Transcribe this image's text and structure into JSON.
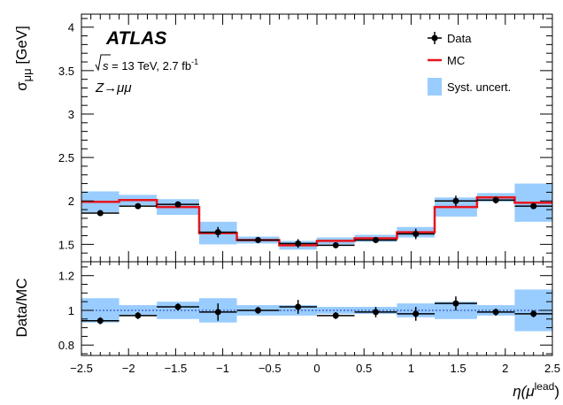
{
  "chart_data": {
    "type": "step",
    "x_edges": [
      -2.5,
      -2.1,
      -1.7,
      -1.25,
      -0.85,
      -0.4,
      0.0,
      0.4,
      0.85,
      1.25,
      1.7,
      2.1,
      2.5
    ],
    "x_centers": [
      -2.3,
      -1.9,
      -1.475,
      -1.05,
      -0.625,
      -0.2,
      0.2,
      0.625,
      1.05,
      1.475,
      1.9,
      2.3
    ],
    "xlim": [
      -2.5,
      2.5
    ],
    "xticks": [
      -2.5,
      -2,
      -1.5,
      -1,
      -0.5,
      0,
      0.5,
      1,
      1.5,
      2,
      2.5
    ],
    "xtick_labels": [
      "−2.5",
      "−2",
      "−1.5",
      "−1",
      "−0.5",
      "0",
      "0.5",
      "1",
      "1.5",
      "2",
      "2.5"
    ],
    "xlabel_main": "η(μ",
    "xlabel_sup": "lead",
    "xlabel_close": ")",
    "top_panel": {
      "ylabel_main": "σ",
      "ylabel_sub": "μμ",
      "ylabel_unit": " [GeV]",
      "ylim": [
        1.3,
        4.15
      ],
      "yticks": [
        1.5,
        2,
        2.5,
        3,
        3.5,
        4
      ],
      "ytick_labels": [
        "1.5",
        "2",
        "2.5",
        "3",
        "3.5",
        "4"
      ],
      "series": [
        {
          "name": "Data",
          "kind": "points",
          "color": "#000000",
          "values": [
            1.86,
            1.94,
            1.96,
            1.64,
            1.55,
            1.51,
            1.49,
            1.55,
            1.62,
            2.0,
            2.01,
            1.94
          ],
          "errors": [
            0.02,
            0.02,
            0.03,
            0.06,
            0.03,
            0.05,
            0.03,
            0.03,
            0.06,
            0.06,
            0.04,
            0.02
          ]
        },
        {
          "name": "MC",
          "kind": "step",
          "color": "#e8141c",
          "values": [
            1.99,
            2.01,
            1.93,
            1.63,
            1.55,
            1.49,
            1.54,
            1.57,
            1.64,
            1.93,
            2.04,
            1.98
          ]
        },
        {
          "name": "Syst. uncert.",
          "kind": "band",
          "color": "#99ccff",
          "values": [
            1.99,
            2.01,
            1.93,
            1.63,
            1.55,
            1.49,
            1.54,
            1.57,
            1.64,
            1.93,
            2.04,
            1.98
          ],
          "errors": [
            0.12,
            0.06,
            0.09,
            0.13,
            0.04,
            0.05,
            0.04,
            0.04,
            0.06,
            0.11,
            0.05,
            0.22
          ]
        }
      ]
    },
    "ratio_panel": {
      "ylabel": "Data/MC",
      "ylim": [
        0.74,
        1.28
      ],
      "yticks": [
        0.8,
        1,
        1.2
      ],
      "ytick_labels": [
        "0.8",
        "1",
        "1.2"
      ],
      "reference_line": 1.0,
      "series": [
        {
          "name": "Data",
          "kind": "points",
          "color": "#000000",
          "values": [
            0.94,
            0.97,
            1.02,
            0.99,
            1.0,
            1.02,
            0.97,
            0.99,
            0.98,
            1.04,
            0.99,
            0.98
          ],
          "errors": [
            0.02,
            0.02,
            0.02,
            0.05,
            0.02,
            0.04,
            0.02,
            0.03,
            0.04,
            0.04,
            0.02,
            0.02
          ]
        },
        {
          "name": "Syst. uncert.",
          "kind": "band",
          "color": "#99ccff",
          "values": [
            1,
            1,
            1,
            1,
            1,
            1,
            1,
            1,
            1,
            1,
            1,
            1
          ],
          "errors": [
            0.07,
            0.03,
            0.05,
            0.07,
            0.03,
            0.03,
            0.02,
            0.02,
            0.04,
            0.05,
            0.03,
            0.12
          ]
        }
      ]
    },
    "legend": {
      "placement": "top-right",
      "entries": [
        "Data",
        "MC",
        "Syst. uncert."
      ]
    },
    "annotations": {
      "experiment": "ATLAS",
      "sqrt_s": "s",
      "energy_lumi": " = 13 TeV, 2.7 fb",
      "lumi_sup": "-1",
      "process": "Z→μμ"
    }
  }
}
